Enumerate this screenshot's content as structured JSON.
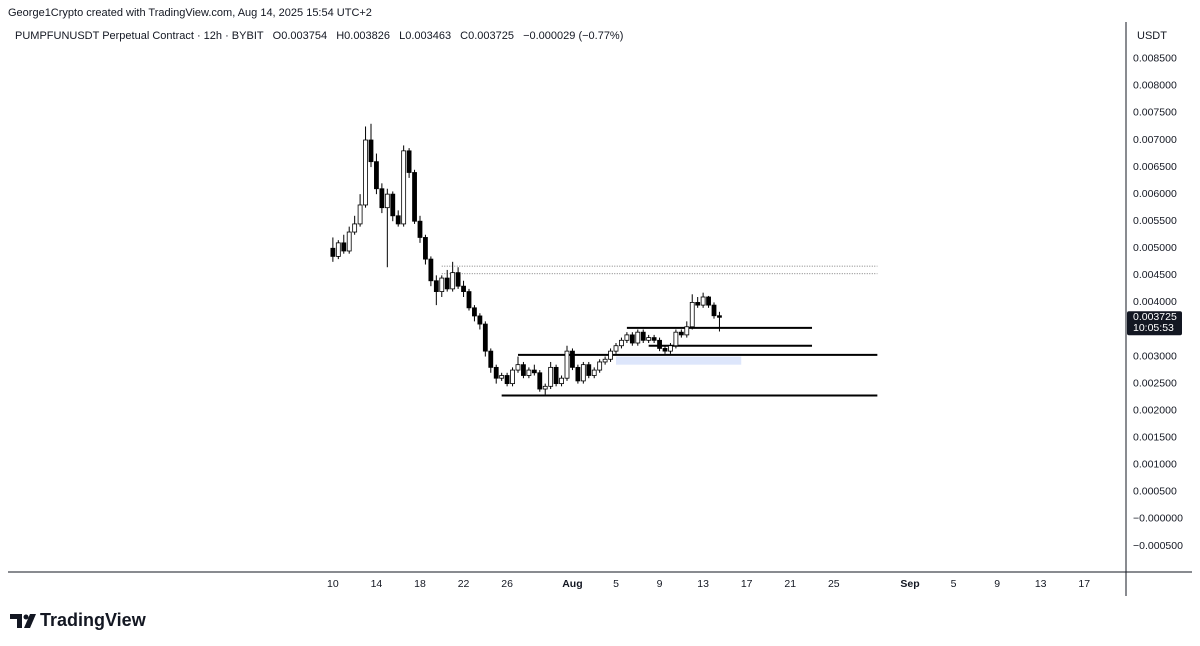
{
  "chart_data": {
    "type": "candlestick",
    "attribution": "George1Crypto created with TradingView.com, Aug 14, 2025 15:54 UTC+2",
    "title": "PUMPFUNUSDT Perpetual Contract · 12h · BYBIT",
    "ohlc_labels": [
      "O",
      "H",
      "L",
      "C"
    ],
    "change": "−0.000029 (−0.77%)",
    "y_unit": "USDT",
    "countdown": "10:05:53",
    "brand": "TradingView",
    "up_color": "#ffffff",
    "down_color": "#000000",
    "wick_color": "#000000",
    "x": [
      "2025-07-10T00:00",
      "2025-07-10T12:00",
      "2025-07-11T00:00",
      "2025-07-11T12:00",
      "2025-07-12T00:00",
      "2025-07-12T12:00",
      "2025-07-13T00:00",
      "2025-07-13T12:00",
      "2025-07-14T00:00",
      "2025-07-14T12:00",
      "2025-07-15T00:00",
      "2025-07-15T12:00",
      "2025-07-16T00:00",
      "2025-07-16T12:00",
      "2025-07-17T00:00",
      "2025-07-17T12:00",
      "2025-07-18T00:00",
      "2025-07-18T12:00",
      "2025-07-19T00:00",
      "2025-07-19T12:00",
      "2025-07-20T00:00",
      "2025-07-20T12:00",
      "2025-07-21T00:00",
      "2025-07-21T12:00",
      "2025-07-22T00:00",
      "2025-07-22T12:00",
      "2025-07-23T00:00",
      "2025-07-23T12:00",
      "2025-07-24T00:00",
      "2025-07-24T12:00",
      "2025-07-25T00:00",
      "2025-07-25T12:00",
      "2025-07-26T00:00",
      "2025-07-26T12:00",
      "2025-07-27T00:00",
      "2025-07-27T12:00",
      "2025-07-28T00:00",
      "2025-07-28T12:00",
      "2025-07-29T00:00",
      "2025-07-29T12:00",
      "2025-07-30T00:00",
      "2025-07-30T12:00",
      "2025-07-31T00:00",
      "2025-07-31T12:00",
      "2025-08-01T00:00",
      "2025-08-01T12:00",
      "2025-08-02T00:00",
      "2025-08-02T12:00",
      "2025-08-03T00:00",
      "2025-08-03T12:00",
      "2025-08-04T00:00",
      "2025-08-04T12:00",
      "2025-08-05T00:00",
      "2025-08-05T12:00",
      "2025-08-06T00:00",
      "2025-08-06T12:00",
      "2025-08-07T00:00",
      "2025-08-07T12:00",
      "2025-08-08T00:00",
      "2025-08-08T12:00",
      "2025-08-09T00:00",
      "2025-08-09T12:00",
      "2025-08-10T00:00",
      "2025-08-10T12:00",
      "2025-08-11T00:00",
      "2025-08-11T12:00",
      "2025-08-12T00:00",
      "2025-08-12T12:00",
      "2025-08-13T00:00",
      "2025-08-13T12:00",
      "2025-08-14T00:00",
      "2025-08-14T12:00"
    ],
    "open": [
      0.005,
      0.00485,
      0.0051,
      0.00495,
      0.0053,
      0.00545,
      0.0058,
      0.007,
      0.0066,
      0.0061,
      0.00575,
      0.006,
      0.0056,
      0.00545,
      0.0068,
      0.0064,
      0.0055,
      0.0052,
      0.0048,
      0.0044,
      0.0042,
      0.00445,
      0.00425,
      0.00455,
      0.0043,
      0.0042,
      0.0039,
      0.00375,
      0.0036,
      0.0031,
      0.0028,
      0.0026,
      0.00265,
      0.0025,
      0.00275,
      0.00285,
      0.00265,
      0.00275,
      0.0027,
      0.0024,
      0.00245,
      0.0028,
      0.0025,
      0.0026,
      0.0031,
      0.0028,
      0.00255,
      0.00285,
      0.00265,
      0.00275,
      0.0029,
      0.00295,
      0.0031,
      0.0032,
      0.0033,
      0.0034,
      0.00325,
      0.00345,
      0.0033,
      0.00335,
      0.0033,
      0.00315,
      0.0031,
      0.0032,
      0.00345,
      0.0034,
      0.00355,
      0.004,
      0.00395,
      0.0041,
      0.00395,
      0.003754
    ],
    "high": [
      0.0052,
      0.00515,
      0.00525,
      0.0054,
      0.0056,
      0.006,
      0.00725,
      0.0073,
      0.00675,
      0.0062,
      0.0061,
      0.00605,
      0.0057,
      0.0069,
      0.00685,
      0.00645,
      0.0056,
      0.00525,
      0.00485,
      0.0045,
      0.0045,
      0.0046,
      0.00475,
      0.00465,
      0.0044,
      0.00425,
      0.00395,
      0.0038,
      0.00365,
      0.00315,
      0.00285,
      0.0027,
      0.0027,
      0.0028,
      0.003,
      0.0029,
      0.0028,
      0.00285,
      0.00275,
      0.0025,
      0.0029,
      0.00285,
      0.00265,
      0.0032,
      0.00315,
      0.00285,
      0.0029,
      0.0029,
      0.0028,
      0.00295,
      0.003,
      0.00315,
      0.00325,
      0.00335,
      0.00345,
      0.00345,
      0.0035,
      0.0035,
      0.0034,
      0.0034,
      0.00335,
      0.0032,
      0.00325,
      0.0035,
      0.0035,
      0.00365,
      0.00415,
      0.0041,
      0.00418,
      0.00412,
      0.004,
      0.003826
    ],
    "low": [
      0.00475,
      0.0048,
      0.0049,
      0.0049,
      0.00525,
      0.0054,
      0.00575,
      0.0065,
      0.006,
      0.00565,
      0.00465,
      0.0055,
      0.0054,
      0.0054,
      0.0063,
      0.00545,
      0.0051,
      0.0047,
      0.0043,
      0.00395,
      0.0041,
      0.0042,
      0.0042,
      0.00425,
      0.0041,
      0.00385,
      0.00365,
      0.0035,
      0.003,
      0.0027,
      0.0025,
      0.00255,
      0.00245,
      0.00245,
      0.0027,
      0.0026,
      0.0026,
      0.00265,
      0.00235,
      0.0023,
      0.0024,
      0.00245,
      0.00245,
      0.00255,
      0.00275,
      0.0025,
      0.0025,
      0.0026,
      0.0026,
      0.0027,
      0.00285,
      0.0029,
      0.00305,
      0.00315,
      0.00325,
      0.0032,
      0.0032,
      0.00325,
      0.00325,
      0.00325,
      0.0031,
      0.00305,
      0.00305,
      0.00315,
      0.00335,
      0.00335,
      0.0035,
      0.0039,
      0.0039,
      0.0039,
      0.0037,
      0.003463
    ],
    "close": [
      0.00485,
      0.0051,
      0.00495,
      0.0053,
      0.00545,
      0.0058,
      0.007,
      0.0066,
      0.0061,
      0.00575,
      0.006,
      0.0056,
      0.00545,
      0.0068,
      0.0064,
      0.0055,
      0.0052,
      0.0048,
      0.0044,
      0.0042,
      0.00445,
      0.00425,
      0.00455,
      0.0043,
      0.0042,
      0.0039,
      0.00375,
      0.0036,
      0.0031,
      0.0028,
      0.0026,
      0.00265,
      0.0025,
      0.00275,
      0.00285,
      0.00265,
      0.00275,
      0.0027,
      0.0024,
      0.00245,
      0.0028,
      0.0025,
      0.0026,
      0.0031,
      0.0028,
      0.00255,
      0.00285,
      0.00265,
      0.00275,
      0.0029,
      0.00295,
      0.0031,
      0.0032,
      0.0033,
      0.0034,
      0.00325,
      0.00345,
      0.0033,
      0.00335,
      0.0033,
      0.00315,
      0.0031,
      0.0032,
      0.00345,
      0.0034,
      0.00355,
      0.004,
      0.00395,
      0.0041,
      0.00395,
      0.003754,
      0.003725
    ],
    "levels": [
      {
        "value": 0.00353,
        "start": "2025-08-06T00:00",
        "end": "2025-08-23T00:00",
        "style": "solid"
      },
      {
        "value": 0.0032,
        "start": "2025-08-08T00:00",
        "end": "2025-08-23T00:00",
        "style": "solid"
      },
      {
        "value": 0.00303,
        "start": "2025-07-27T00:00",
        "end": "2025-08-29T00:00",
        "style": "solid"
      },
      {
        "value": 0.00228,
        "start": "2025-07-25T12:00",
        "end": "2025-08-29T00:00",
        "style": "solid"
      },
      {
        "value": 0.00467,
        "start": "2025-07-20T00:00",
        "end": "2025-08-29T00:00",
        "style": "dotted"
      },
      {
        "value": 0.00453,
        "start": "2025-07-20T00:00",
        "end": "2025-08-29T00:00",
        "style": "dotted"
      }
    ],
    "zone": {
      "low": 0.00285,
      "high": 0.003,
      "start": "2025-08-05T00:00",
      "end": "2025-08-16T12:00",
      "color": "#dde6fb"
    },
    "xlim": [
      "2025-06-10T04:00",
      "2025-09-20T20:00"
    ],
    "xticks": [
      {
        "value": "2025-07-10",
        "label": "10"
      },
      {
        "value": "2025-07-14",
        "label": "14"
      },
      {
        "value": "2025-07-18",
        "label": "18"
      },
      {
        "value": "2025-07-22",
        "label": "22"
      },
      {
        "value": "2025-07-26",
        "label": "26"
      },
      {
        "value": "2025-08-01",
        "label": "Aug"
      },
      {
        "value": "2025-08-05",
        "label": "5"
      },
      {
        "value": "2025-08-09",
        "label": "9"
      },
      {
        "value": "2025-08-13",
        "label": "13"
      },
      {
        "value": "2025-08-17",
        "label": "17"
      },
      {
        "value": "2025-08-21",
        "label": "21"
      },
      {
        "value": "2025-08-25",
        "label": "25"
      },
      {
        "value": "2025-09-01",
        "label": "Sep"
      },
      {
        "value": "2025-09-05",
        "label": "5"
      },
      {
        "value": "2025-09-09",
        "label": "9"
      },
      {
        "value": "2025-09-13",
        "label": "13"
      },
      {
        "value": "2025-09-17",
        "label": "17"
      }
    ],
    "ylim": [
      -0.00098,
      0.00918
    ],
    "yticks": [
      {
        "value": 0.0085,
        "label": "0.008500"
      },
      {
        "value": 0.008,
        "label": "0.008000"
      },
      {
        "value": 0.0075,
        "label": "0.007500"
      },
      {
        "value": 0.007,
        "label": "0.007000"
      },
      {
        "value": 0.0065,
        "label": "0.006500"
      },
      {
        "value": 0.006,
        "label": "0.006000"
      },
      {
        "value": 0.0055,
        "label": "0.005500"
      },
      {
        "value": 0.005,
        "label": "0.005000"
      },
      {
        "value": 0.0045,
        "label": "0.004500"
      },
      {
        "value": 0.004,
        "label": "0.004000"
      },
      {
        "value": 0.0035,
        "label": "0.003500"
      },
      {
        "value": 0.003,
        "label": "0.003000"
      },
      {
        "value": 0.0025,
        "label": "0.002500"
      },
      {
        "value": 0.002,
        "label": "0.002000"
      },
      {
        "value": 0.0015,
        "label": "0.001500"
      },
      {
        "value": 0.001,
        "label": "0.001000"
      },
      {
        "value": 0.0005,
        "label": "0.000500"
      },
      {
        "value": 0,
        "label": "−0.000000"
      },
      {
        "value": -0.0005,
        "label": "−0.000500"
      }
    ]
  }
}
